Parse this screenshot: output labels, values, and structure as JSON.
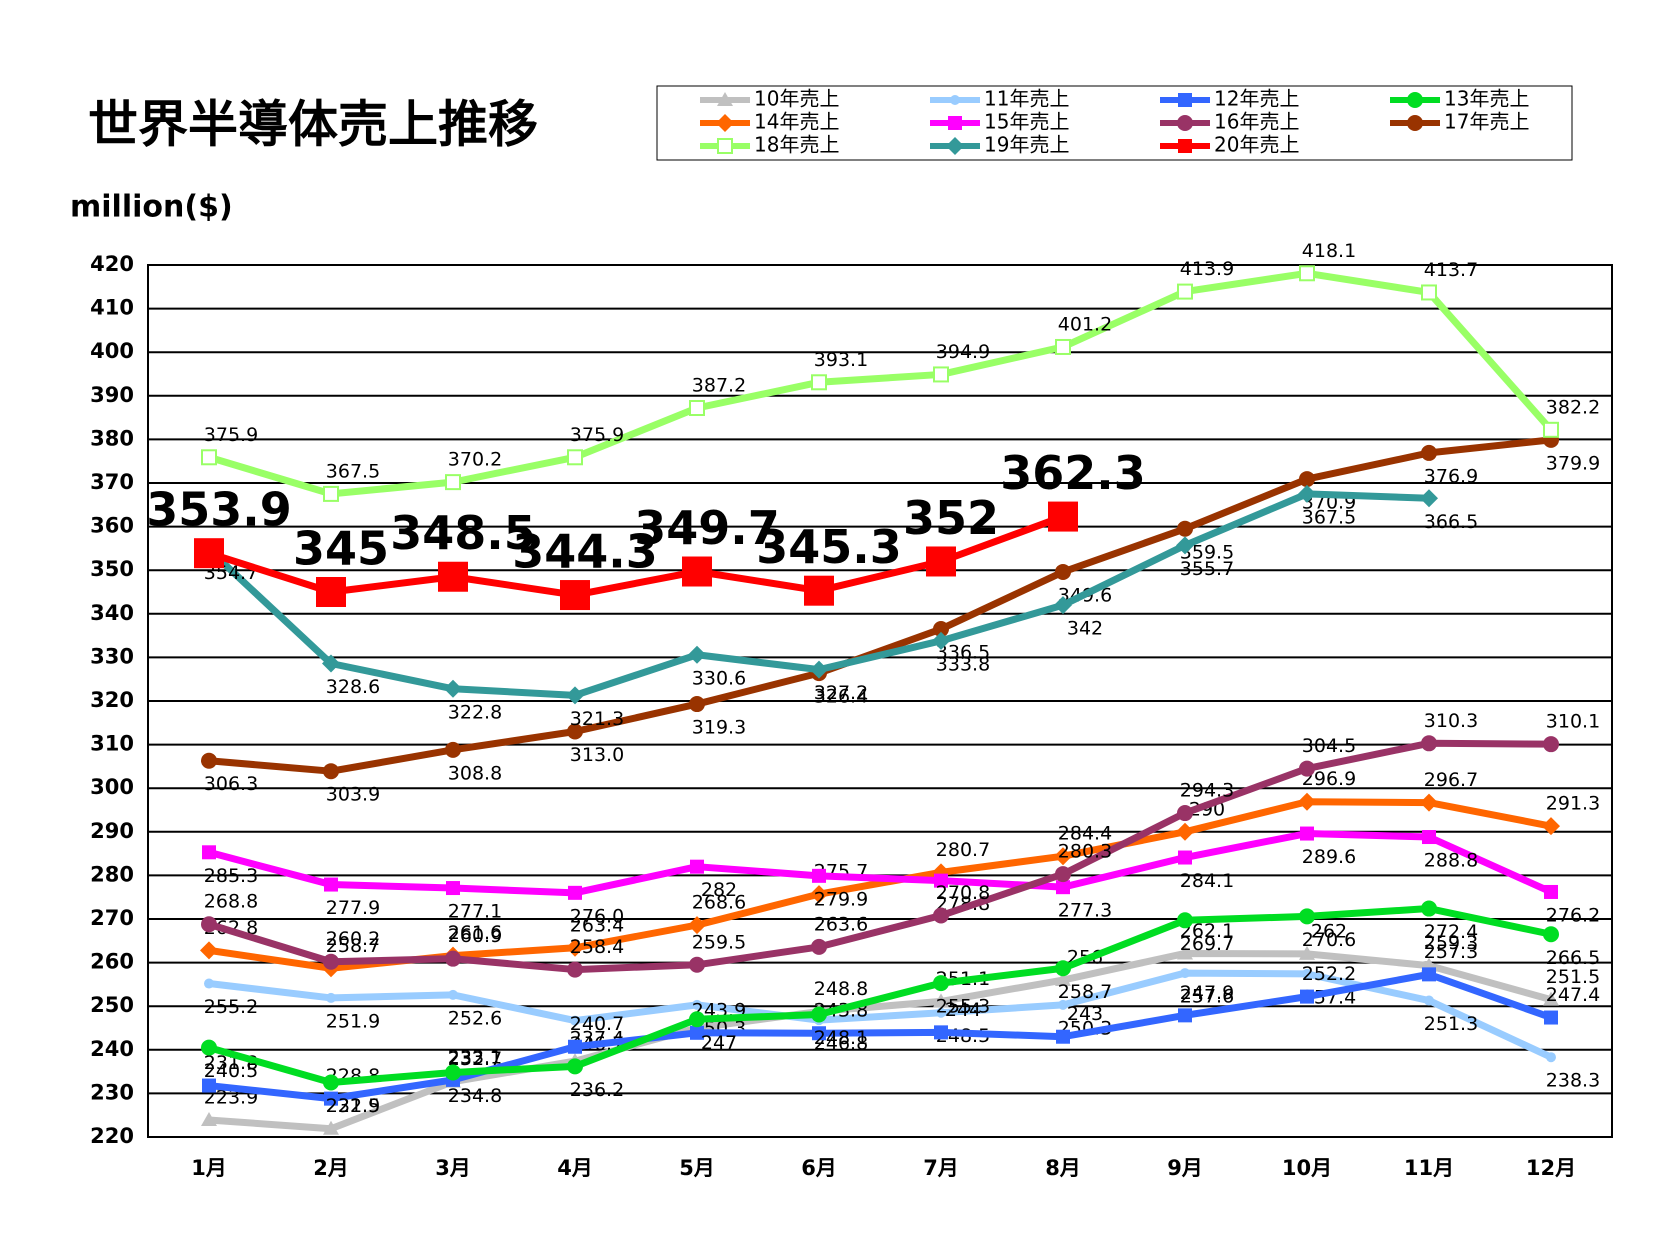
{
  "chart_data": {
    "type": "line",
    "title": "世界半導体売上推移",
    "y_label": "million($)",
    "categories": [
      "1月",
      "2月",
      "3月",
      "4月",
      "5月",
      "6月",
      "7月",
      "8月",
      "9月",
      "10月",
      "11月",
      "12月"
    ],
    "ylim": [
      220,
      420
    ],
    "yticks": [
      220,
      230,
      240,
      250,
      260,
      270,
      280,
      290,
      300,
      310,
      320,
      330,
      340,
      350,
      360,
      370,
      380,
      390,
      400,
      410,
      420
    ],
    "grid": true,
    "series": [
      {
        "name": "10年売上",
        "color": "#c0c0c0",
        "marker": "triangle",
        "values": [
          223.9,
          221.9,
          232.7,
          237.4,
          245,
          248.8,
          251.1,
          256,
          262.1,
          262,
          259.3,
          251.5
        ],
        "value_labels": [
          "223.9",
          "221.9",
          "232.7",
          "237.4",
          null,
          "248.8",
          "251.1",
          "256",
          "262.1",
          "262",
          "259.3",
          "251.5"
        ]
      },
      {
        "name": "11年売上",
        "color": "#99ccff",
        "marker": "dot",
        "values": [
          255.2,
          251.9,
          252.6,
          246.7,
          250.3,
          246.8,
          248.5,
          250.3,
          257.6,
          257.4,
          251.3,
          238.3
        ]
      },
      {
        "name": "12年売上",
        "color": "#3366ff",
        "marker": "square",
        "values": [
          231.8,
          228.8,
          233.1,
          240.7,
          243.9,
          243.8,
          244,
          243,
          247.9,
          252.2,
          257.3,
          247.4
        ]
      },
      {
        "name": "13年売上",
        "color": "#00dd22",
        "marker": "circle",
        "values": [
          240.5,
          232.5,
          234.8,
          236.2,
          247,
          248.1,
          255.3,
          258.7,
          269.7,
          270.6,
          272.4,
          266.5
        ]
      },
      {
        "name": "14年売上",
        "color": "#ff6600",
        "marker": "diamond",
        "values": [
          262.8,
          258.7,
          261.6,
          263.4,
          268.6,
          275.7,
          280.7,
          284.4,
          290,
          296.9,
          296.7,
          291.3
        ]
      },
      {
        "name": "15年売上",
        "color": "#ff00ff",
        "marker": "square",
        "values": [
          285.3,
          277.9,
          277.1,
          276.0,
          282,
          279.9,
          278.8,
          277.3,
          284.1,
          289.6,
          288.8,
          276.2
        ],
        "value_labels": [
          "285.3",
          "277.9",
          "277.1",
          "276.0",
          "282",
          "279.9",
          "278.8",
          "277.3",
          "284.1",
          "289.6",
          "288.8",
          "276.2"
        ]
      },
      {
        "name": "16年売上",
        "color": "#993366",
        "marker": "circle",
        "values": [
          268.8,
          260.2,
          260.9,
          258.4,
          259.5,
          263.6,
          270.8,
          280.3,
          294.3,
          304.5,
          310.3,
          310.1
        ]
      },
      {
        "name": "17年売上",
        "color": "#993300",
        "marker": "circle",
        "values": [
          306.3,
          303.9,
          308.8,
          313.0,
          319.3,
          326.4,
          336.5,
          349.6,
          359.5,
          370.9,
          376.9,
          379.9
        ],
        "value_labels": [
          "306.3",
          "303.9",
          "308.8",
          "313.0",
          "319.3",
          "326.4",
          "336.5",
          "349.6",
          "359.5",
          "370.9",
          "376.9",
          "379.9"
        ]
      },
      {
        "name": "18年売上",
        "color": "#99ff66",
        "marker": "opensquare",
        "values": [
          375.9,
          367.5,
          370.2,
          375.9,
          387.2,
          393.1,
          394.9,
          401.2,
          413.9,
          418.1,
          413.7,
          382.2
        ]
      },
      {
        "name": "19年売上",
        "color": "#339999",
        "marker": "diamond",
        "values": [
          354.7,
          328.6,
          322.8,
          321.3,
          330.6,
          327.2,
          333.8,
          342,
          355.7,
          367.5,
          366.5,
          null
        ]
      },
      {
        "name": "20年売上",
        "color": "#ff0000",
        "marker": "bigsquare",
        "values": [
          353.9,
          345,
          348.5,
          344.3,
          349.7,
          345.3,
          352,
          362.3,
          null,
          null,
          null,
          null
        ]
      }
    ]
  }
}
